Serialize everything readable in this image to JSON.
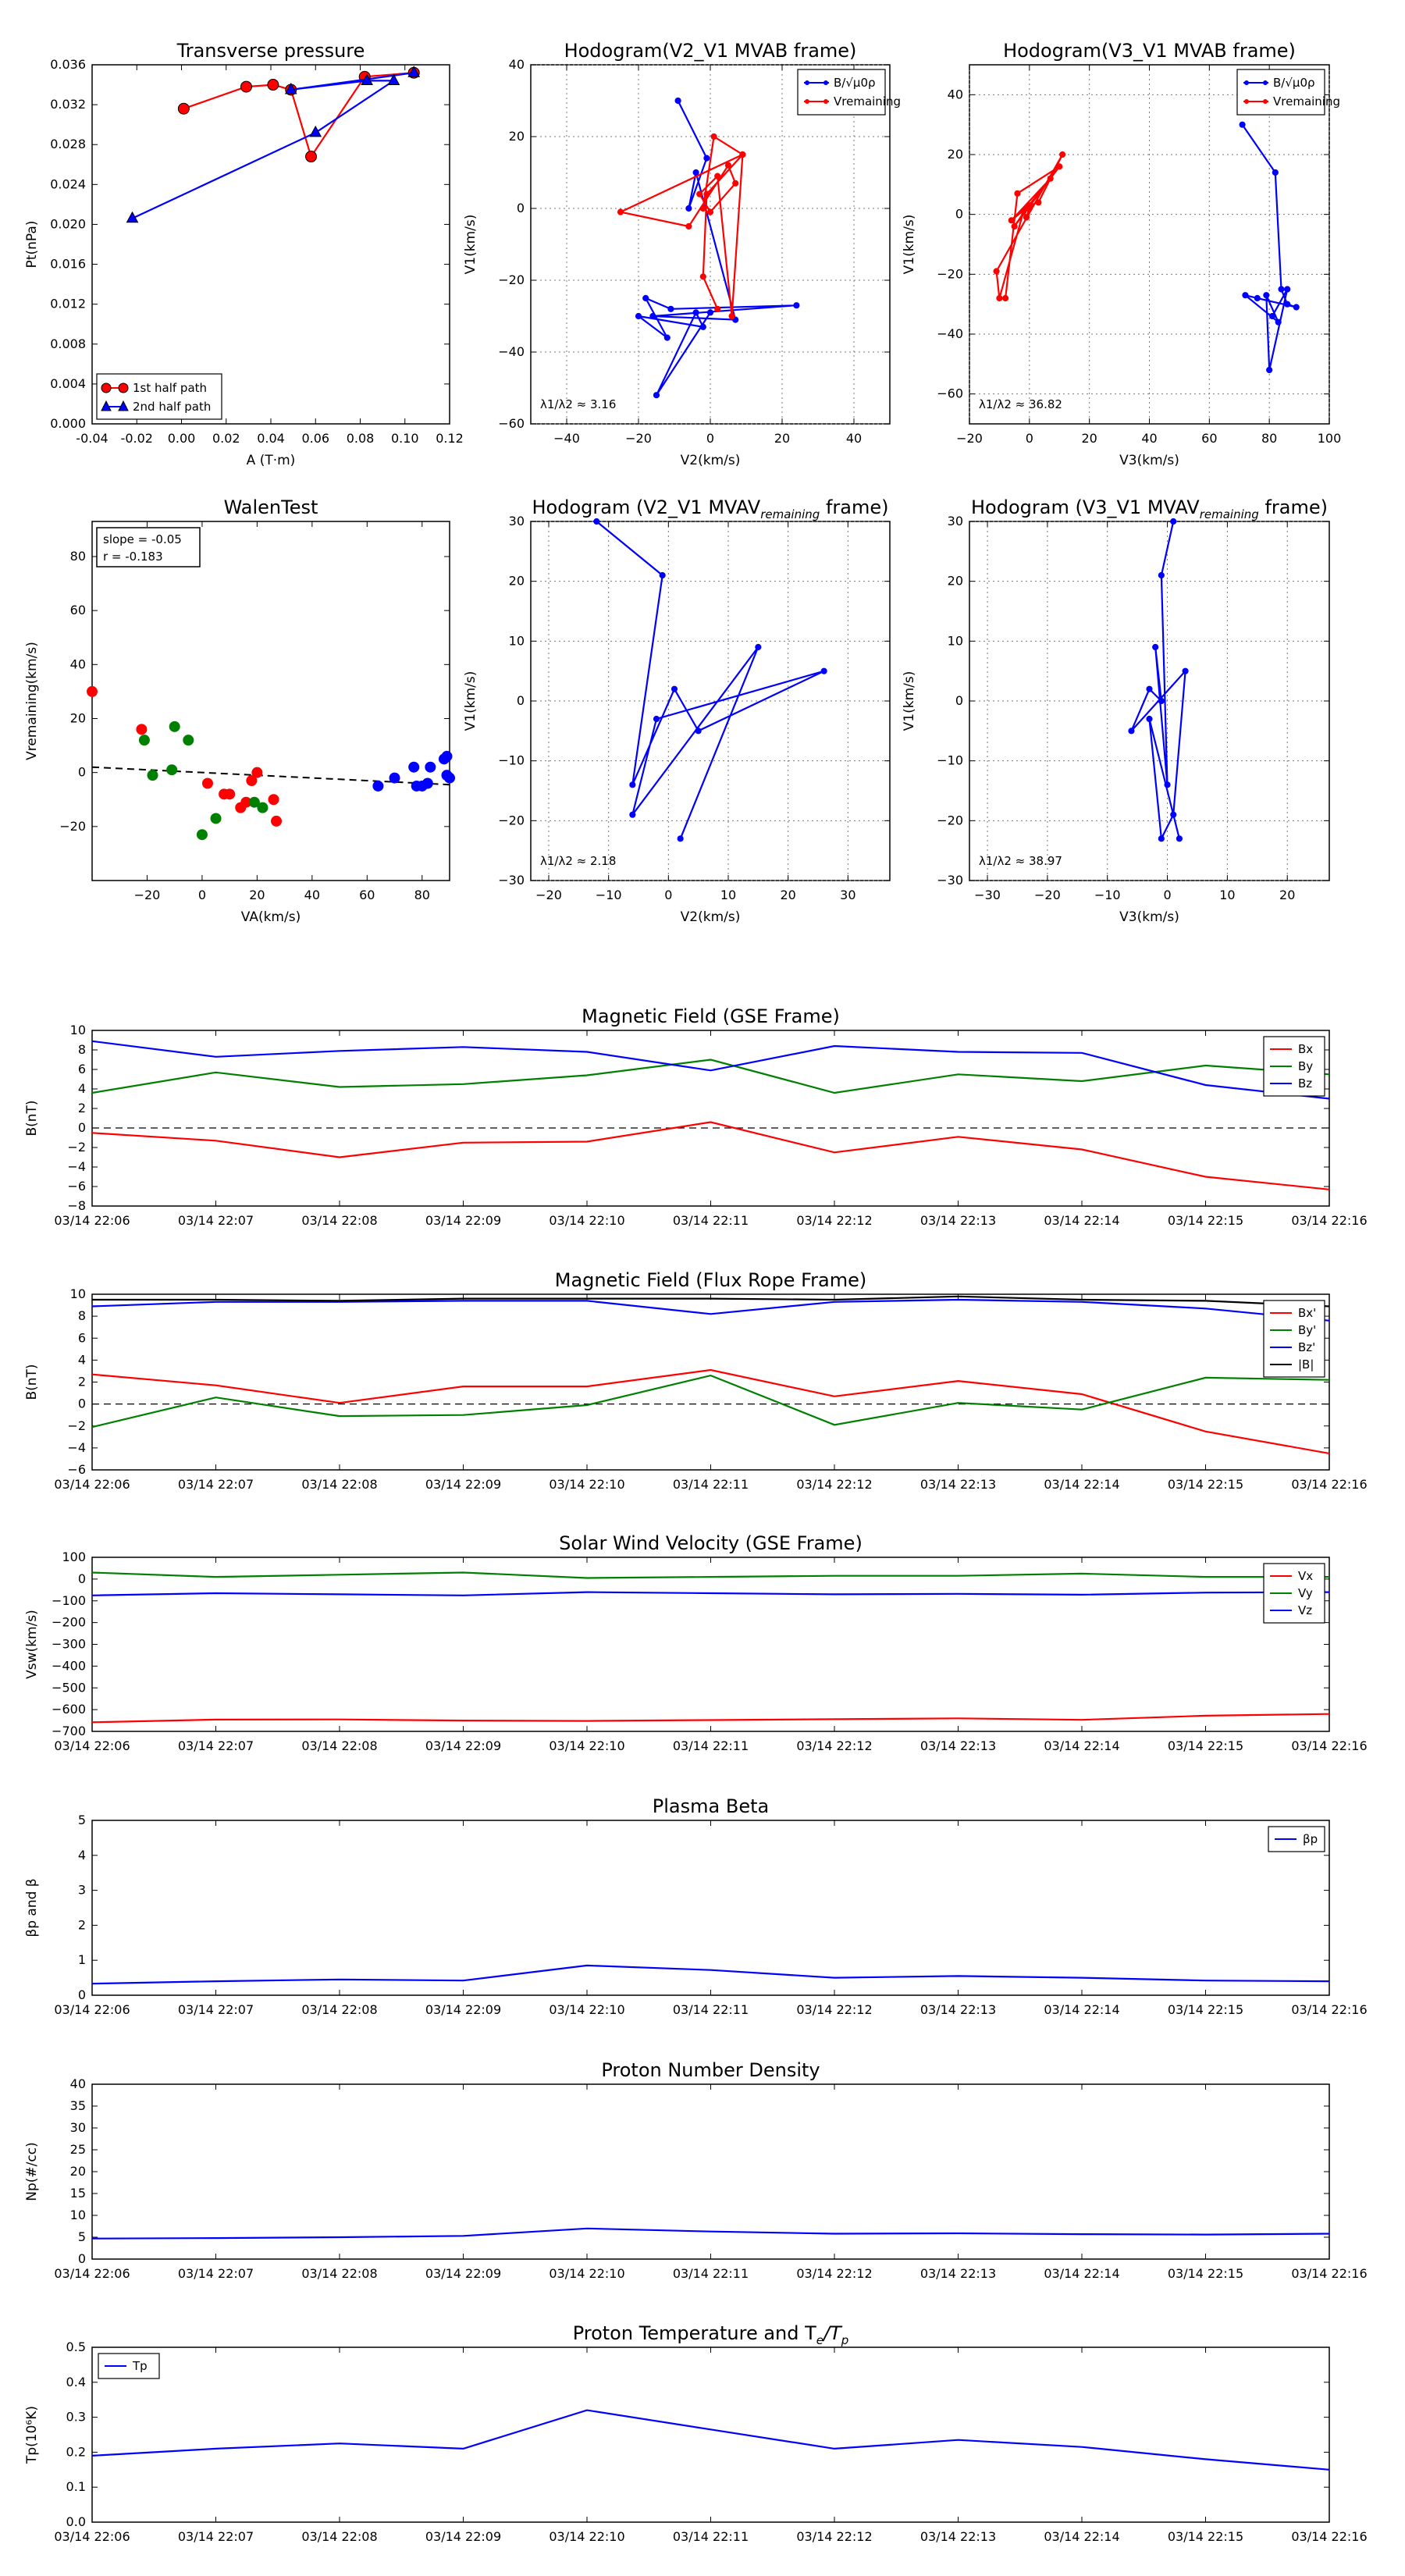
{
  "page": {
    "background": "#ffffff"
  },
  "colors": {
    "red": "#ff0000",
    "green": "#008000",
    "blue": "#0000ff",
    "black": "#000000",
    "navy": "#00008b"
  },
  "chart_data": [
    {
      "id": "transverse_pressure",
      "type": "scatter",
      "title": "Transverse pressure",
      "xlabel": "A (T·m)",
      "ylabel": "Pt(nPa)",
      "xlim": [
        -0.04,
        0.12
      ],
      "ylim": [
        0.0,
        0.036
      ],
      "xticks": [
        "-0.04",
        "-0.02",
        "0.00",
        "0.02",
        "0.04",
        "0.06",
        "0.08",
        "0.10",
        "0.12"
      ],
      "yticks": [
        "0.000",
        "0.004",
        "0.008",
        "0.012",
        "0.016",
        "0.020",
        "0.024",
        "0.028",
        "0.032",
        "0.036"
      ],
      "legend": {
        "position": "lower-left",
        "entries": [
          "1st half path",
          "2nd half path"
        ]
      },
      "series": [
        {
          "name": "1st half path",
          "color": "#ff0000",
          "marker": "circle",
          "x": [
            0.001,
            0.029,
            0.041,
            0.049,
            0.058,
            0.082,
            0.104
          ],
          "y": [
            0.0316,
            0.0338,
            0.034,
            0.0335,
            0.0268,
            0.0348,
            0.0352
          ]
        },
        {
          "name": "2nd half path",
          "color": "#0000ff",
          "marker": "triangle",
          "x": [
            0.104,
            0.049,
            0.083,
            0.095,
            0.06,
            -0.022
          ],
          "y": [
            0.0352,
            0.0335,
            0.0344,
            0.0344,
            0.0292,
            0.0206
          ]
        }
      ]
    },
    {
      "id": "hodogram_v2_v1_mvab",
      "type": "line",
      "title": "Hodogram(V2_V1 MVAB frame)",
      "xlabel": "V2(km/s)",
      "ylabel": "V1(km/s)",
      "xlim": [
        -50,
        50
      ],
      "ylim": [
        -60,
        40
      ],
      "xticks": [
        "−40",
        "−20",
        "0",
        "20",
        "40"
      ],
      "yticks": [
        "−60",
        "−40",
        "−20",
        "0",
        "20",
        "40"
      ],
      "legend": {
        "position": "top-right",
        "entries": [
          "B/√μ0ρ",
          "Vremaining"
        ]
      },
      "annotation": "λ1/λ2 ≈ 3.16",
      "series": [
        {
          "name": "B/√μ0ρ",
          "color": "#0000ff",
          "x": [
            -9,
            -1,
            -6,
            -4,
            7,
            -16,
            24,
            -11,
            -18,
            -12,
            -20,
            -2,
            -4,
            -15,
            0
          ],
          "y": [
            30,
            14,
            0,
            10,
            -31,
            -30,
            -27,
            -28,
            -25,
            -36,
            -30,
            -33,
            -29,
            -52,
            -29
          ]
        },
        {
          "name": "Vremaining",
          "color": "#ff0000",
          "x": [
            -2,
            1,
            9,
            -25,
            -6,
            5,
            7,
            0,
            -3,
            2,
            6,
            9,
            -1,
            -2,
            2
          ],
          "y": [
            0,
            20,
            15,
            -1,
            -5,
            12,
            7,
            -1,
            4,
            9,
            -30,
            15,
            4,
            -19,
            -28
          ]
        }
      ]
    },
    {
      "id": "hodogram_v3_v1_mvab",
      "type": "line",
      "title": "Hodogram(V3_V1 MVAB frame)",
      "xlabel": "V3(km/s)",
      "ylabel": "V1(km/s)",
      "xlim": [
        -20,
        100
      ],
      "ylim": [
        -70,
        50
      ],
      "xticks": [
        "−20",
        "0",
        "20",
        "40",
        "60",
        "80",
        "100"
      ],
      "yticks": [
        "−60",
        "−40",
        "−20",
        "0",
        "20",
        "40"
      ],
      "legend": {
        "position": "top-right",
        "entries": [
          "B/√μ0ρ",
          "Vremaining"
        ]
      },
      "annotation": "λ1/λ2 ≈ 36.82",
      "series": [
        {
          "name": "B/√μ0ρ",
          "color": "#0000ff",
          "x": [
            71,
            82,
            84,
            86,
            89,
            76,
            72,
            83,
            79,
            80,
            86,
            81
          ],
          "y": [
            30,
            14,
            -25,
            -30,
            -31,
            -28,
            -27,
            -36,
            -27,
            -52,
            -25,
            -34
          ]
        },
        {
          "name": "Vremaining",
          "color": "#ff0000",
          "x": [
            -8,
            -4,
            10,
            -5,
            -1,
            7,
            -6,
            0,
            3,
            11,
            -11,
            -10,
            -2,
            -1,
            0
          ],
          "y": [
            -28,
            7,
            16,
            -4,
            2,
            12,
            -2,
            3,
            4,
            20,
            -19,
            -28,
            1,
            -1,
            2
          ]
        }
      ]
    },
    {
      "id": "walen_test",
      "type": "scatter",
      "title": "WalenTest",
      "xlabel": "VA(km/s)",
      "ylabel": "Vremaining(km/s)",
      "xlim": [
        -40,
        90
      ],
      "ylim": [
        -40,
        93
      ],
      "xticks": [
        "−20",
        "0",
        "20",
        "40",
        "60",
        "80"
      ],
      "yticks": [
        "−20",
        "0",
        "20",
        "40",
        "60",
        "80"
      ],
      "textbox": [
        "slope = -0.05",
        "r = -0.183"
      ],
      "fit_line": {
        "slope": -0.05,
        "intercept": 0.0,
        "color": "#000000"
      },
      "series": [
        {
          "name": "red",
          "color": "#ff0000",
          "x": [
            -40,
            -22,
            2,
            8,
            10,
            14,
            16,
            18,
            20,
            26,
            27
          ],
          "y": [
            30,
            16,
            -4,
            -8,
            -8,
            -13,
            -11,
            -3,
            0,
            -10,
            -18
          ]
        },
        {
          "name": "green",
          "color": "#008000",
          "x": [
            -21,
            -18,
            -11,
            -10,
            -5,
            0,
            5,
            19,
            22
          ],
          "y": [
            12,
            -1,
            1,
            17,
            12,
            -23,
            -17,
            -11,
            -13
          ]
        },
        {
          "name": "blue",
          "color": "#0000ff",
          "x": [
            64,
            70,
            77,
            78,
            80,
            82,
            83,
            88,
            89,
            89,
            90
          ],
          "y": [
            -5,
            -2,
            2,
            -5,
            -5,
            -4,
            2,
            5,
            6,
            -1,
            -2
          ]
        }
      ]
    },
    {
      "id": "hodogram_v2_v1_mvav",
      "type": "line",
      "title": "Hodogram (V2_V1 MVAV",
      "title_sub": "remaining",
      "title_end": " frame)",
      "xlabel": "V2(km/s)",
      "ylabel": "V1(km/s)",
      "xlim": [
        -23,
        37
      ],
      "ylim": [
        -30,
        30
      ],
      "xticks": [
        "−20",
        "−10",
        "0",
        "10",
        "20",
        "30"
      ],
      "yticks": [
        "−30",
        "−20",
        "−10",
        "0",
        "10",
        "20",
        "30"
      ],
      "annotation": "λ1/λ2 ≈ 2.18",
      "series": [
        {
          "name": "B/√μ0ρ",
          "color": "#0000ff",
          "x": [
            -12,
            -1,
            -6,
            1,
            5,
            26,
            -2,
            -6,
            15,
            2
          ],
          "y": [
            30,
            21,
            -14,
            2,
            -5,
            5,
            -3,
            -19,
            9,
            -23
          ]
        }
      ]
    },
    {
      "id": "hodogram_v3_v1_mvav",
      "type": "line",
      "title": "Hodogram (V3_V1 MVAV",
      "title_sub": "remaining",
      "title_end": " frame)",
      "xlabel": "V3(km/s)",
      "ylabel": "V1(km/s)",
      "xlim": [
        -33,
        27
      ],
      "ylim": [
        -30,
        30
      ],
      "xticks": [
        "−30",
        "−20",
        "−10",
        "0",
        "10",
        "20"
      ],
      "yticks": [
        "−30",
        "−20",
        "−10",
        "0",
        "10",
        "20",
        "30"
      ],
      "annotation": "λ1/λ2 ≈ 38.97",
      "series": [
        {
          "name": "B/√μ0ρ",
          "color": "#0000ff",
          "x": [
            1,
            -1,
            0,
            -2,
            -1,
            -3,
            -6,
            3,
            1,
            -1,
            -3,
            2
          ],
          "y": [
            30,
            21,
            -14,
            9,
            0,
            2,
            -5,
            5,
            -19,
            -23,
            -3,
            -23
          ]
        }
      ]
    },
    {
      "id": "mag_gse",
      "type": "line",
      "title": "Magnetic Field (GSE Frame)",
      "ylabel": "B(nT)",
      "xlim": [
        0,
        10
      ],
      "ylim": [
        -8,
        10
      ],
      "yticks": [
        "−8",
        "−6",
        "−4",
        "−2",
        "0",
        "2",
        "4",
        "6",
        "8",
        "10"
      ],
      "zero_line": true,
      "legend": {
        "position": "top-right",
        "entries": [
          "Bx",
          "By",
          "Bz"
        ]
      },
      "series": [
        {
          "name": "Bx",
          "color": "#ff0000",
          "values": [
            -0.5,
            -1.3,
            -3.0,
            -1.5,
            -1.4,
            0.6,
            -2.5,
            -0.9,
            -2.2,
            -5.0,
            -6.3
          ]
        },
        {
          "name": "By",
          "color": "#008000",
          "values": [
            3.6,
            5.7,
            4.2,
            4.5,
            5.4,
            7.0,
            3.6,
            5.5,
            4.8,
            6.4,
            5.5
          ]
        },
        {
          "name": "Bz",
          "color": "#0000ff",
          "values": [
            8.9,
            7.3,
            7.9,
            8.3,
            7.8,
            5.9,
            8.4,
            7.8,
            7.7,
            4.4,
            3.0
          ]
        }
      ]
    },
    {
      "id": "mag_fluxrope",
      "type": "line",
      "title": "Magnetic Field (Flux Rope Frame)",
      "ylabel": "B(nT)",
      "xlim": [
        0,
        10
      ],
      "ylim": [
        -6,
        10
      ],
      "yticks": [
        "−6",
        "−4",
        "−2",
        "0",
        "2",
        "4",
        "6",
        "8",
        "10"
      ],
      "zero_line": true,
      "legend": {
        "position": "top-right",
        "entries": [
          "Bx'",
          "By'",
          "Bz'",
          "|B|"
        ]
      },
      "series": [
        {
          "name": "Bx'",
          "color": "#ff0000",
          "values": [
            2.7,
            1.7,
            0.1,
            1.6,
            1.6,
            3.1,
            0.7,
            2.1,
            0.9,
            -2.5,
            -4.5
          ]
        },
        {
          "name": "By'",
          "color": "#008000",
          "values": [
            -2.1,
            0.6,
            -1.1,
            -1.0,
            -0.1,
            2.6,
            -1.9,
            0.1,
            -0.5,
            2.4,
            2.2
          ]
        },
        {
          "name": "Bz'",
          "color": "#0000ff",
          "values": [
            8.9,
            9.3,
            9.3,
            9.4,
            9.4,
            8.2,
            9.3,
            9.5,
            9.3,
            8.7,
            7.6
          ]
        },
        {
          "name": "|B|",
          "color": "#000000",
          "values": [
            9.5,
            9.5,
            9.4,
            9.6,
            9.6,
            9.6,
            9.5,
            9.8,
            9.5,
            9.4,
            8.9
          ]
        }
      ]
    },
    {
      "id": "sw_velocity",
      "type": "line",
      "title": "Solar Wind Velocity (GSE Frame)",
      "ylabel": "Vsw(km/s)",
      "xlim": [
        0,
        10
      ],
      "ylim": [
        -700,
        100
      ],
      "yticks": [
        "−700",
        "−600",
        "−500",
        "−400",
        "−300",
        "−200",
        "−100",
        "0",
        "100"
      ],
      "legend": {
        "position": "top-right",
        "entries": [
          "Vx",
          "Vy",
          "Vz"
        ]
      },
      "series": [
        {
          "name": "Vx",
          "color": "#ff0000",
          "values": [
            -658,
            -646,
            -645,
            -650,
            -652,
            -648,
            -644,
            -640,
            -647,
            -628,
            -620
          ]
        },
        {
          "name": "Vy",
          "color": "#008000",
          "values": [
            30,
            10,
            20,
            30,
            5,
            10,
            15,
            15,
            25,
            10,
            10
          ]
        },
        {
          "name": "Vz",
          "color": "#0000ff",
          "values": [
            -75,
            -65,
            -70,
            -75,
            -60,
            -65,
            -70,
            -68,
            -72,
            -62,
            -60
          ]
        }
      ]
    },
    {
      "id": "plasma_beta",
      "type": "line",
      "title": "Plasma Beta",
      "ylabel": "βp and β",
      "xlim": [
        0,
        10
      ],
      "ylim": [
        0,
        5
      ],
      "yticks": [
        "0",
        "1",
        "2",
        "3",
        "4",
        "5"
      ],
      "legend": {
        "position": "top-right",
        "entries": [
          "βp"
        ]
      },
      "series": [
        {
          "name": "βp",
          "color": "#0000ff",
          "values": [
            0.33,
            0.4,
            0.45,
            0.42,
            0.85,
            0.72,
            0.5,
            0.55,
            0.5,
            0.42,
            0.4
          ]
        }
      ]
    },
    {
      "id": "proton_density",
      "type": "line",
      "title": "Proton Number Density",
      "ylabel": "Np(#/cc)",
      "xlim": [
        0,
        10
      ],
      "ylim": [
        0,
        40
      ],
      "yticks": [
        "0",
        "5",
        "10",
        "15",
        "20",
        "25",
        "30",
        "35",
        "40"
      ],
      "series": [
        {
          "name": "Np",
          "color": "#0000ff",
          "values": [
            4.7,
            4.8,
            5.0,
            5.3,
            7.0,
            6.3,
            5.8,
            5.9,
            5.7,
            5.6,
            5.8
          ]
        }
      ]
    },
    {
      "id": "proton_temperature",
      "type": "line",
      "title": "Proton Temperature and T",
      "title_sub_italic": "e",
      "title_mid": "/T",
      "title_sub2_italic": "p",
      "ylabel": "Tp(10⁶K)",
      "xlim": [
        0,
        10
      ],
      "ylim": [
        0,
        0.5
      ],
      "yticks": [
        "0.0",
        "0.1",
        "0.2",
        "0.3",
        "0.4",
        "0.5"
      ],
      "legend": {
        "position": "top-left",
        "entries": [
          "Tp"
        ]
      },
      "series": [
        {
          "name": "Tp",
          "color": "#0000ff",
          "values": [
            0.19,
            0.21,
            0.225,
            0.21,
            0.32,
            0.265,
            0.21,
            0.235,
            0.215,
            0.18,
            0.15
          ]
        }
      ]
    }
  ],
  "time_ticks": [
    "03/14 22:06",
    "03/14 22:07",
    "03/14 22:08",
    "03/14 22:09",
    "03/14 22:10",
    "03/14 22:11",
    "03/14 22:12",
    "03/14 22:13",
    "03/14 22:14",
    "03/14 22:15",
    "03/14 22:16"
  ]
}
